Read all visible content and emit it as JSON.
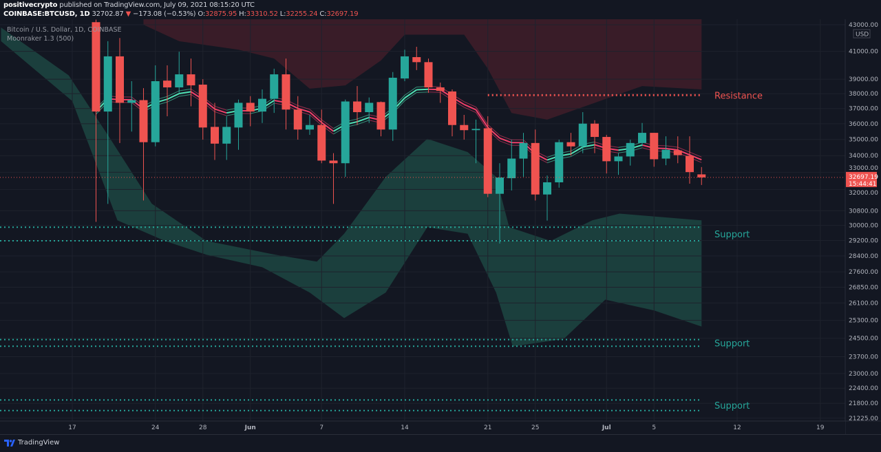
{
  "header": {
    "author": "positivecrypto",
    "published": " published on TradingView.com, July 09, 2021 08:15:20 UTC",
    "symbol": "COINBASE:BTCUSD, 1D",
    "last": "32702.87",
    "change_arrow": "▼",
    "change": "−173.08 (−0.53%)",
    "o_label": "O:",
    "o": "32875.95",
    "h_label": "H:",
    "h": "33310.52",
    "l_label": "L:",
    "l": "32255.24",
    "c_label": "C:",
    "c": "32697.19"
  },
  "legend": {
    "series": "Bitcoin / U.S. Dollar, 1D, COINBASE",
    "indicator": "Moonraker 1.3 (500)"
  },
  "footer": {
    "brand": "TradingView"
  },
  "colors": {
    "background": "#131722",
    "up": "#26a69a",
    "down": "#ef5350",
    "support": "#26a69a",
    "resistance": "#ef5350"
  },
  "chart_data": {
    "type": "candlestick",
    "scale": "log",
    "currency": "USD",
    "ylim": [
      21225,
      43000
    ],
    "y_ticks": [
      "43000.00",
      "41000.00",
      "39000.00",
      "38000.00",
      "37000.00",
      "36000.00",
      "35000.00",
      "34000.00",
      "33000.00",
      "32000.00",
      "30800.00",
      "30000.00",
      "29200.00",
      "28400.00",
      "27600.00",
      "26850.00",
      "26100.00",
      "25300.00",
      "24500.00",
      "23700.00",
      "23000.00",
      "22400.00",
      "21800.00",
      "21225.00"
    ],
    "x_ticks": [
      {
        "label": "17",
        "day": 0
      },
      {
        "label": "24",
        "day": 7
      },
      {
        "label": "28",
        "day": 11
      },
      {
        "label": "Jun",
        "day": 15
      },
      {
        "label": "7",
        "day": 21
      },
      {
        "label": "14",
        "day": 28
      },
      {
        "label": "21",
        "day": 35
      },
      {
        "label": "25",
        "day": 39
      },
      {
        "label": "Jul",
        "day": 45
      },
      {
        "label": "5",
        "day": 49
      },
      {
        "label": "12",
        "day": 56
      },
      {
        "label": "19",
        "day": 63
      }
    ],
    "first_candle_day": 2,
    "candles": [
      [
        43200,
        43400,
        30190,
        36800
      ],
      [
        36800,
        41750,
        31180,
        40630
      ],
      [
        40630,
        41990,
        34780,
        37380
      ],
      [
        37380,
        38860,
        35500,
        37560
      ],
      [
        37560,
        38380,
        31370,
        34830
      ],
      [
        34830,
        39980,
        34570,
        38860
      ],
      [
        38900,
        39980,
        36490,
        38430
      ],
      [
        38430,
        40970,
        38060,
        39340
      ],
      [
        39340,
        40470,
        37150,
        38570
      ],
      [
        38620,
        39000,
        34990,
        35760
      ],
      [
        35800,
        37380,
        33740,
        34740
      ],
      [
        34740,
        36490,
        33740,
        35800
      ],
      [
        35760,
        37600,
        34360,
        37380
      ],
      [
        37380,
        37830,
        35840,
        36800
      ],
      [
        36800,
        38290,
        36050,
        37650
      ],
      [
        37650,
        39740,
        36710,
        39340
      ],
      [
        39340,
        40470,
        35630,
        36930
      ],
      [
        36930,
        37830,
        34990,
        35630
      ],
      [
        35630,
        36580,
        35290,
        35920
      ],
      [
        35920,
        36930,
        33540,
        33700
      ],
      [
        33700,
        34150,
        31180,
        33540
      ],
      [
        33540,
        37600,
        32730,
        37470
      ],
      [
        37470,
        38520,
        35920,
        36760
      ],
      [
        36760,
        37740,
        36050,
        37380
      ],
      [
        37430,
        37470,
        35200,
        35630
      ],
      [
        35630,
        39500,
        34910,
        39100
      ],
      [
        39050,
        41120,
        38860,
        40630
      ],
      [
        40575,
        41335,
        39640,
        40210
      ],
      [
        40210,
        40470,
        38060,
        38430
      ],
      [
        38430,
        38760,
        37380,
        38190
      ],
      [
        38150,
        38290,
        35200,
        35920
      ],
      [
        35920,
        36580,
        34990,
        35590
      ],
      [
        35590,
        36270,
        33540,
        35670
      ],
      [
        35710,
        36490,
        31560,
        31750
      ],
      [
        31750,
        33540,
        29040,
        32690
      ],
      [
        32650,
        34990,
        31940,
        33820
      ],
      [
        33820,
        35420,
        32730,
        34780
      ],
      [
        34780,
        35630,
        31370,
        31710
      ],
      [
        31710,
        32810,
        30260,
        32410
      ],
      [
        32410,
        34990,
        32100,
        34830
      ],
      [
        34830,
        35420,
        34000,
        34570
      ],
      [
        34570,
        36760,
        34150,
        36010
      ],
      [
        36010,
        36230,
        34150,
        35160
      ],
      [
        35160,
        35290,
        32930,
        33660
      ],
      [
        33660,
        34150,
        32850,
        33950
      ],
      [
        33950,
        34990,
        33400,
        34780
      ],
      [
        34780,
        36050,
        34570,
        35420
      ],
      [
        35420,
        35420,
        33330,
        33780
      ],
      [
        33820,
        35200,
        33420,
        34360
      ],
      [
        34320,
        35200,
        33540,
        34030
      ],
      [
        33990,
        35200,
        32330,
        33010
      ],
      [
        32875.95,
        33310.52,
        32255.24,
        32697.19
      ]
    ],
    "last_price_label": "32697.19",
    "countdown_label": "15:44:41",
    "levels": [
      {
        "label": "Resistance",
        "type": "resistance",
        "prices": [
          37900
        ]
      },
      {
        "label": "Support",
        "type": "support",
        "prices": [
          29900,
          29180
        ]
      },
      {
        "label": "Support",
        "type": "support",
        "prices": [
          24440,
          24150
        ]
      },
      {
        "label": "Support",
        "type": "support",
        "prices": [
          21930,
          21520
        ]
      }
    ],
    "support_cloud": {
      "upper": [
        [
          -6,
          42790
        ],
        [
          -0.3,
          39270
        ],
        [
          3.2,
          35040
        ],
        [
          6.7,
          31190
        ],
        [
          11.3,
          29180
        ],
        [
          17.1,
          28460
        ],
        [
          20.6,
          28110
        ],
        [
          22.9,
          29550
        ],
        [
          26.4,
          32730
        ],
        [
          29.9,
          35040
        ],
        [
          33.3,
          34220
        ],
        [
          35.7,
          32730
        ],
        [
          36.8,
          29900
        ],
        [
          40.3,
          29180
        ],
        [
          43.8,
          30270
        ],
        [
          46.1,
          30640
        ],
        [
          53,
          30270
        ]
      ],
      "lower": [
        [
          53,
          25020
        ],
        [
          49,
          25750
        ],
        [
          44.9,
          26260
        ],
        [
          41.4,
          24470
        ],
        [
          37.1,
          24140
        ],
        [
          35.7,
          26590
        ],
        [
          33.3,
          29550
        ],
        [
          29.9,
          29900
        ],
        [
          26.4,
          26590
        ],
        [
          22.9,
          25400
        ],
        [
          20,
          26590
        ],
        [
          16,
          27830
        ],
        [
          11.3,
          28460
        ],
        [
          7.8,
          29180
        ],
        [
          3.8,
          30270
        ],
        [
          0,
          37500
        ],
        [
          -6,
          41750
        ]
      ]
    },
    "resistance_cloud": {
      "lower": [
        [
          6,
          43000
        ],
        [
          9,
          41750
        ],
        [
          14,
          41120
        ],
        [
          17,
          40470
        ],
        [
          20,
          38340
        ],
        [
          23,
          38570
        ],
        [
          26,
          40330
        ],
        [
          28,
          42240
        ],
        [
          33,
          42240
        ],
        [
          35,
          39740
        ],
        [
          37,
          36700
        ],
        [
          40,
          36270
        ],
        [
          44,
          37380
        ],
        [
          48,
          38520
        ],
        [
          53,
          38290
        ]
      ]
    }
  }
}
